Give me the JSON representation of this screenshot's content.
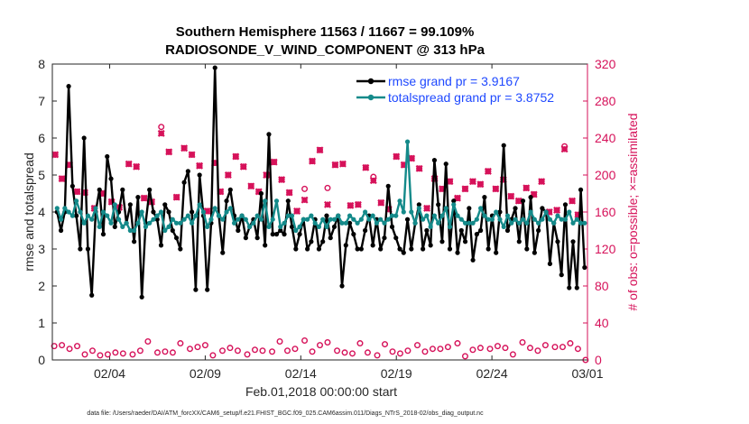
{
  "chart_data": {
    "type": "line",
    "title": "Southern Hemisphere 11563 / 11667 = 99.109%",
    "subtitle": "RADIOSONDE_V_WIND_COMPONENT @ 313 hPa",
    "xlabel": "Feb.01,2018 00:00:00 start",
    "ylabel_left": "rmse and totalspread",
    "ylabel_right": "# of obs: o=possible; ×=assimilated",
    "xlim": [
      1,
      29
    ],
    "ylim_left": [
      0,
      8
    ],
    "ylim_right": [
      0,
      320
    ],
    "x_tick_labels": [
      "02/04",
      "02/09",
      "02/14",
      "02/19",
      "02/24",
      "03/01"
    ],
    "x_ticks": [
      4,
      9,
      14,
      19,
      24,
      29
    ],
    "y_ticks_left": [
      "0",
      "1",
      "2",
      "3",
      "4",
      "5",
      "6",
      "7",
      "8"
    ],
    "y_ticks_right": [
      "0",
      "40",
      "80",
      "120",
      "160",
      "200",
      "240",
      "280",
      "320"
    ],
    "grid": false,
    "legend": {
      "position": "top-right",
      "entries": [
        "rmse grand pr = 3.9167",
        "totalspread grand pr = 3.8752"
      ]
    },
    "series": [
      {
        "name": "rmse",
        "color": "#000000",
        "axis": "left",
        "values": [
          4.0,
          3.5,
          4.0,
          7.4,
          4.7,
          3.9,
          3.0,
          6.0,
          3.0,
          1.75,
          4.0,
          4.6,
          3.4,
          5.5,
          4.9,
          3.6,
          4.0,
          4.6,
          3.7,
          4.2,
          3.2,
          4.4,
          1.7,
          3.7,
          4.6,
          4.0,
          3.8,
          3.1,
          4.2,
          4.0,
          3.5,
          3.3,
          3.0,
          4.8,
          5.1,
          4.0,
          1.9,
          5.0,
          3.9,
          1.9,
          3.7,
          7.9,
          3.9,
          2.9,
          4.3,
          4.6,
          3.9,
          3.5,
          3.9,
          3.3,
          3.6,
          3.8,
          3.3,
          4.5,
          3.1,
          6.1,
          3.4,
          3.4,
          3.5,
          3.4,
          4.3,
          3.6,
          3.0,
          3.4,
          3.8,
          3.0,
          3.2,
          3.8,
          3.0,
          3.2,
          3.9,
          3.3,
          3.6,
          3.9,
          2.0,
          3.1,
          3.7,
          3.4,
          3.0,
          3.0,
          3.5,
          3.9,
          3.1,
          3.8,
          3.0,
          3.3,
          4.7,
          3.6,
          3.3,
          3.0,
          2.9,
          3.8,
          3.0,
          3.7,
          4.2,
          3.0,
          3.5,
          3.1,
          5.4,
          4.2,
          3.2,
          5.3,
          3.0,
          4.3,
          2.9,
          3.5,
          3.2,
          4.1,
          2.7,
          3.4,
          3.5,
          4.4,
          3.0,
          3.9,
          2.9,
          4.0,
          5.8,
          3.5,
          3.8,
          4.1,
          3.2,
          4.3,
          3.0,
          4.4,
          2.9,
          3.5,
          4.1,
          4.0,
          2.6,
          3.7,
          3.2,
          2.3,
          4.2,
          1.95,
          3.2,
          1.95,
          4.6,
          2.5
        ]
      },
      {
        "name": "totalspread",
        "color": "#148a8a",
        "axis": "left",
        "values": [
          4.1,
          3.8,
          4.1,
          4.0,
          3.9,
          4.3,
          4.0,
          3.7,
          3.9,
          3.8,
          4.1,
          3.6,
          4.0,
          3.9,
          3.7,
          4.2,
          3.8,
          3.6,
          3.7,
          3.5,
          3.5,
          3.7,
          4.0,
          3.6,
          3.7,
          3.8,
          3.9,
          4.0,
          3.5,
          3.6,
          3.8,
          3.7,
          3.7,
          3.8,
          3.9,
          3.7,
          3.9,
          4.2,
          4.0,
          3.6,
          3.8,
          4.1,
          3.9,
          3.8,
          4.0,
          4.1,
          3.7,
          3.8,
          3.9,
          3.8,
          3.6,
          3.7,
          3.9,
          3.8,
          4.3,
          3.6,
          3.8,
          4.3,
          3.6,
          3.7,
          3.9,
          3.9,
          3.5,
          3.6,
          3.8,
          3.8,
          3.9,
          3.7,
          3.6,
          3.8,
          3.6,
          3.8,
          3.8,
          3.9,
          3.7,
          3.7,
          3.9,
          3.8,
          3.7,
          3.8,
          4.0,
          3.8,
          3.9,
          3.7,
          3.8,
          3.7,
          3.8,
          3.9,
          3.9,
          4.3,
          4.0,
          5.9,
          4.0,
          3.7,
          4.1,
          3.8,
          3.9,
          3.6,
          3.9,
          3.7,
          3.9,
          4.1,
          3.6,
          4.2,
          3.9,
          3.8,
          3.7,
          3.7,
          3.7,
          3.8,
          4.1,
          3.9,
          3.8,
          3.8,
          4.0,
          3.8,
          3.6,
          3.9,
          3.7,
          3.8,
          3.7,
          3.8,
          3.7,
          4.0,
          3.8,
          3.7,
          3.8,
          4.0,
          3.8,
          3.7,
          3.9,
          3.8,
          3.8,
          4.0,
          3.7,
          3.8,
          3.7,
          3.7
        ]
      },
      {
        "name": "possible",
        "marker": "o",
        "color": "#d6125a",
        "axis": "right",
        "x": [
          1.15,
          1.5,
          1.9,
          2.3,
          2.7,
          3.2,
          3.6,
          4.1,
          4.5,
          5.0,
          5.4,
          5.8,
          6.2,
          6.7,
          7.1,
          7.5,
          7.9,
          8.3,
          8.7,
          9.1,
          9.5,
          9.8,
          10.2,
          10.6,
          11.0,
          11.4,
          11.8,
          12.2,
          12.6,
          13.0,
          13.4,
          13.8,
          14.2,
          14.6,
          15.0,
          15.4,
          15.8,
          16.2,
          16.6,
          17.0,
          17.4,
          17.8,
          18.2,
          18.6,
          19.0,
          19.4,
          19.8,
          20.2,
          20.6,
          21.0,
          21.4,
          21.8,
          22.2,
          22.6,
          23.0,
          23.4,
          23.8,
          24.2,
          24.6,
          25.0,
          25.4,
          25.8,
          26.2,
          26.6,
          27.0,
          27.4,
          27.8,
          28.2,
          28.5
        ],
        "values": [
          222,
          196,
          211,
          182,
          181,
          164,
          180,
          171,
          165,
          212,
          209,
          175,
          171,
          252,
          225,
          176,
          229,
          222,
          210,
          161,
          213,
          182,
          200,
          220,
          209,
          188,
          182,
          200,
          214,
          195,
          181,
          161,
          185,
          215,
          227,
          186,
          211,
          212,
          167,
          168,
          208,
          198,
          170,
          163,
          220,
          211,
          218,
          207,
          164,
          196,
          185,
          193,
          175,
          185,
          193,
          190,
          204,
          185,
          195,
          177,
          172,
          186,
          179,
          193,
          160,
          162,
          231,
          172,
          157
        ]
      },
      {
        "name": "assimilated",
        "marker": "x",
        "color": "#d6125a",
        "axis": "right",
        "x": [
          1.15,
          1.5,
          1.9,
          2.3,
          2.7,
          3.2,
          3.6,
          4.1,
          4.5,
          5.0,
          5.4,
          5.8,
          6.2,
          6.7,
          7.1,
          7.5,
          7.9,
          8.3,
          8.7,
          9.1,
          9.5,
          9.8,
          10.2,
          10.6,
          11.0,
          11.4,
          11.8,
          12.2,
          12.6,
          13.0,
          13.4,
          13.8,
          14.2,
          14.6,
          15.0,
          15.4,
          15.8,
          16.2,
          16.6,
          17.0,
          17.4,
          17.8,
          18.2,
          18.6,
          19.0,
          19.4,
          19.8,
          20.2,
          20.6,
          21.0,
          21.4,
          21.8,
          22.2,
          22.6,
          23.0,
          23.4,
          23.8,
          24.2,
          24.6,
          25.0,
          25.4,
          25.8,
          26.2,
          26.6,
          27.0,
          27.4,
          27.8,
          28.2,
          28.5
        ],
        "values": [
          222,
          196,
          211,
          182,
          181,
          164,
          180,
          171,
          165,
          212,
          209,
          175,
          171,
          245,
          225,
          176,
          229,
          222,
          210,
          161,
          213,
          182,
          200,
          220,
          209,
          188,
          182,
          200,
          214,
          195,
          181,
          161,
          173,
          215,
          227,
          168,
          211,
          212,
          167,
          168,
          208,
          194,
          170,
          163,
          220,
          211,
          218,
          207,
          164,
          196,
          185,
          193,
          175,
          185,
          193,
          190,
          204,
          185,
          195,
          177,
          172,
          186,
          179,
          193,
          160,
          162,
          228,
          172,
          157
        ]
      },
      {
        "name": "possible-low",
        "marker": "o",
        "color": "#d6125a",
        "axis": "right",
        "x": [
          1.1,
          1.5,
          1.9,
          2.3,
          2.7,
          3.1,
          3.5,
          3.9,
          4.3,
          4.7,
          5.2,
          5.6,
          6.0,
          6.5,
          6.9,
          7.3,
          7.7,
          8.2,
          8.6,
          9.0,
          9.4,
          9.9,
          10.3,
          10.7,
          11.2,
          11.6,
          12.0,
          12.5,
          12.9,
          13.3,
          13.7,
          14.2,
          14.6,
          15.0,
          15.4,
          15.9,
          16.3,
          16.7,
          17.1,
          17.5,
          18.0,
          18.4,
          18.8,
          19.2,
          19.6,
          20.1,
          20.5,
          20.9,
          21.3,
          21.7,
          22.2,
          22.6,
          23.0,
          23.4,
          23.9,
          24.3,
          24.7,
          25.1,
          25.6,
          26.0,
          26.4,
          26.8,
          27.3,
          27.7,
          28.1,
          28.5,
          28.9
        ],
        "values": [
          15,
          16,
          12,
          15,
          6,
          10,
          5,
          6,
          8,
          7,
          6,
          10,
          20,
          8,
          9,
          8,
          18,
          12,
          14,
          16,
          5,
          10,
          13,
          10,
          6,
          11,
          10,
          9,
          20,
          10,
          12,
          21,
          9,
          16,
          19,
          10,
          8,
          7,
          18,
          8,
          5,
          17,
          9,
          7,
          10,
          16,
          9,
          12,
          12,
          14,
          18,
          4,
          11,
          13,
          12,
          15,
          13,
          6,
          19,
          13,
          10,
          16,
          14,
          14,
          18,
          12,
          0
        ]
      }
    ]
  },
  "footnote": "data file: /Users/raeder/DAI/ATM_forcXX/CAM6_setup/f.e21.FHIST_BGC.f09_025.CAM6assim.011/Diags_NTrS_2018-02/obs_diag_output.nc"
}
